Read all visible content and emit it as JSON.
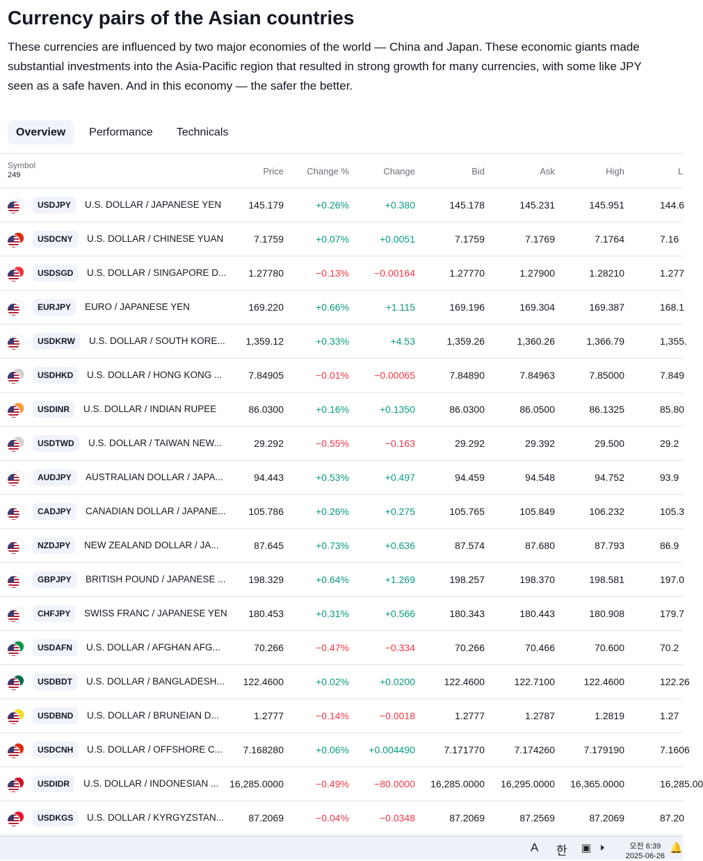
{
  "page": {
    "title": "Currency pairs of the Asian countries",
    "description": "These currencies are influenced by two major economies of the world — China and Japan. These economic giants made substantial investments into the Asia-Pacific region that resulted in strong growth for many currencies, with some like JPY seen as a safe haven. And in this economy — the safer the better."
  },
  "tabs": [
    {
      "label": "Overview",
      "active": true
    },
    {
      "label": "Performance",
      "active": false
    },
    {
      "label": "Technicals",
      "active": false
    }
  ],
  "table": {
    "symbol_header": "Symbol",
    "symbol_count": "249",
    "columns": [
      "Price",
      "Change %",
      "Change",
      "Bid",
      "Ask",
      "High",
      "L"
    ],
    "rows": [
      {
        "ticker": "USDJPY",
        "name": "U.S. DOLLAR / JAPANESE YEN",
        "price": "145.179",
        "chg_pct": "+0.26%",
        "chg": "+0.380",
        "bid": "145.178",
        "ask": "145.231",
        "high": "145.951",
        "low": "144.6",
        "dir": "pos",
        "flag2": "#ffffff"
      },
      {
        "ticker": "USDCNY",
        "name": "U.S. DOLLAR / CHINESE YUAN",
        "price": "7.1759",
        "chg_pct": "+0.07%",
        "chg": "+0.0051",
        "bid": "7.1759",
        "ask": "7.1769",
        "high": "7.1764",
        "low": "7.16",
        "dir": "pos",
        "flag2": "#de2910"
      },
      {
        "ticker": "USDSGD",
        "name": "U.S. DOLLAR / SINGAPORE D...",
        "price": "1.27780",
        "chg_pct": "−0.13%",
        "chg": "−0.00164",
        "bid": "1.27770",
        "ask": "1.27900",
        "high": "1.28210",
        "low": "1.277",
        "dir": "neg",
        "flag2": "#ef3340"
      },
      {
        "ticker": "EURJPY",
        "name": "EURO / JAPANESE YEN",
        "price": "169.220",
        "chg_pct": "+0.66%",
        "chg": "+1.115",
        "bid": "169.196",
        "ask": "169.304",
        "high": "169.387",
        "low": "168.1",
        "dir": "pos",
        "flag2": "#ffffff"
      },
      {
        "ticker": "USDKRW",
        "name": "U.S. DOLLAR / SOUTH KORE...",
        "price": "1,359.12",
        "chg_pct": "+0.33%",
        "chg": "+4.53",
        "bid": "1,359.26",
        "ask": "1,360.26",
        "high": "1,366.79",
        "low": "1,355.",
        "dir": "pos",
        "flag2": "#ffffff"
      },
      {
        "ticker": "USDHKD",
        "name": "U.S. DOLLAR / HONG KONG ...",
        "price": "7.84905",
        "chg_pct": "−0.01%",
        "chg": "−0.00065",
        "bid": "7.84890",
        "ask": "7.84963",
        "high": "7.85000",
        "low": "7.849",
        "dir": "neg",
        "flag2": "#d0d0d0"
      },
      {
        "ticker": "USDINR",
        "name": "U.S. DOLLAR / INDIAN RUPEE",
        "price": "86.0300",
        "chg_pct": "+0.16%",
        "chg": "+0.1350",
        "bid": "86.0300",
        "ask": "86.0500",
        "high": "86.1325",
        "low": "85.80",
        "dir": "pos",
        "flag2": "#ff9933"
      },
      {
        "ticker": "USDTWD",
        "name": "U.S. DOLLAR / TAIWAN NEW...",
        "price": "29.292",
        "chg_pct": "−0.55%",
        "chg": "−0.163",
        "bid": "29.292",
        "ask": "29.392",
        "high": "29.500",
        "low": "29.2",
        "dir": "neg",
        "flag2": "#d0d0d0"
      },
      {
        "ticker": "AUDJPY",
        "name": "AUSTRALIAN DOLLAR / JAPA...",
        "price": "94.443",
        "chg_pct": "+0.53%",
        "chg": "+0.497",
        "bid": "94.459",
        "ask": "94.548",
        "high": "94.752",
        "low": "93.9",
        "dir": "pos",
        "flag2": "#ffffff"
      },
      {
        "ticker": "CADJPY",
        "name": "CANADIAN DOLLAR / JAPANE...",
        "price": "105.786",
        "chg_pct": "+0.26%",
        "chg": "+0.275",
        "bid": "105.765",
        "ask": "105.849",
        "high": "106.232",
        "low": "105.3",
        "dir": "pos",
        "flag2": "#ffffff"
      },
      {
        "ticker": "NZDJPY",
        "name": "NEW ZEALAND DOLLAR / JA...",
        "price": "87.645",
        "chg_pct": "+0.73%",
        "chg": "+0.636",
        "bid": "87.574",
        "ask": "87.680",
        "high": "87.793",
        "low": "86.9",
        "dir": "pos",
        "flag2": "#ffffff"
      },
      {
        "ticker": "GBPJPY",
        "name": "BRITISH POUND / JAPANESE ...",
        "price": "198.329",
        "chg_pct": "+0.64%",
        "chg": "+1.269",
        "bid": "198.257",
        "ask": "198.370",
        "high": "198.581",
        "low": "197.0",
        "dir": "pos",
        "flag2": "#ffffff"
      },
      {
        "ticker": "CHFJPY",
        "name": "SWISS FRANC / JAPANESE YEN",
        "price": "180.453",
        "chg_pct": "+0.31%",
        "chg": "+0.566",
        "bid": "180.343",
        "ask": "180.443",
        "high": "180.908",
        "low": "179.7",
        "dir": "pos",
        "flag2": "#ffffff"
      },
      {
        "ticker": "USDAFN",
        "name": "U.S. DOLLAR / AFGHAN AFG...",
        "price": "70.266",
        "chg_pct": "−0.47%",
        "chg": "−0.334",
        "bid": "70.266",
        "ask": "70.466",
        "high": "70.600",
        "low": "70.2",
        "dir": "neg",
        "flag2": "#009a44"
      },
      {
        "ticker": "USDBDT",
        "name": "U.S. DOLLAR / BANGLADESH...",
        "price": "122.4600",
        "chg_pct": "+0.02%",
        "chg": "+0.0200",
        "bid": "122.4600",
        "ask": "122.7100",
        "high": "122.4600",
        "low": "122.26",
        "dir": "pos",
        "flag2": "#006a4e"
      },
      {
        "ticker": "USDBND",
        "name": "U.S. DOLLAR / BRUNEIAN D...",
        "price": "1.2777",
        "chg_pct": "−0.14%",
        "chg": "−0.0018",
        "bid": "1.2777",
        "ask": "1.2787",
        "high": "1.2819",
        "low": "1.27",
        "dir": "neg",
        "flag2": "#f7e017"
      },
      {
        "ticker": "USDCNH",
        "name": "U.S. DOLLAR / OFFSHORE C...",
        "price": "7.168280",
        "chg_pct": "+0.06%",
        "chg": "+0.004490",
        "bid": "7.171770",
        "ask": "7.174260",
        "high": "7.179190",
        "low": "7.1606",
        "dir": "pos",
        "flag2": "#de2910"
      },
      {
        "ticker": "USDIDR",
        "name": "U.S. DOLLAR / INDONESIAN ...",
        "price": "16,285.0000",
        "chg_pct": "−0.49%",
        "chg": "−80.0000",
        "bid": "16,285.0000",
        "ask": "16,295.0000",
        "high": "16,365.0000",
        "low": "16,285.00",
        "dir": "neg",
        "flag2": "#ce1126"
      },
      {
        "ticker": "USDKGS",
        "name": "U.S. DOLLAR / KYRGYZSTAN...",
        "price": "87.2069",
        "chg_pct": "−0.04%",
        "chg": "−0.0348",
        "bid": "87.2069",
        "ask": "87.2569",
        "high": "87.2069",
        "low": "87.20",
        "dir": "neg",
        "flag2": "#e8112d"
      }
    ]
  },
  "taskbar": {
    "ime": "A",
    "lang": "한",
    "time": "오전 6:39",
    "date": "2025-06-26"
  }
}
